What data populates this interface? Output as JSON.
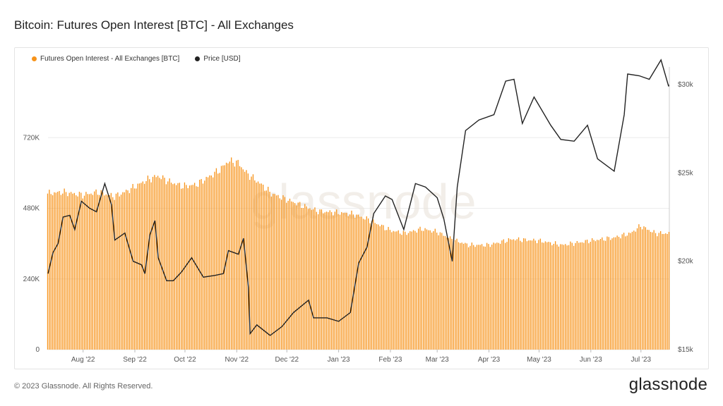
{
  "title": "Bitcoin: Futures Open Interest [BTC] - All Exchanges",
  "footer": "© 2023 Glassnode. All Rights Reserved.",
  "brand": "glassnode",
  "watermark": "glassnode",
  "legend": [
    {
      "label": "Futures Open Interest - All Exchanges [BTC]",
      "color": "#f7931a"
    },
    {
      "label": "Price [USD]",
      "color": "#222222"
    }
  ],
  "chart_data": {
    "type": "bar",
    "x_range": [
      "2022-07-11",
      "2023-07-18"
    ],
    "series": [
      {
        "name": "Futures Open Interest - All Exchanges [BTC]",
        "type": "bar",
        "axis": "left",
        "color": "#f7931a",
        "points": [
          [
            "2022-07-11",
            530000
          ],
          [
            "2022-07-20",
            535000
          ],
          [
            "2022-08-01",
            525000
          ],
          [
            "2022-08-10",
            535000
          ],
          [
            "2022-08-20",
            520000
          ],
          [
            "2022-08-28",
            540000
          ],
          [
            "2022-09-08",
            575000
          ],
          [
            "2022-09-15",
            590000
          ],
          [
            "2022-09-22",
            570000
          ],
          [
            "2022-09-30",
            555000
          ],
          [
            "2022-10-08",
            560000
          ],
          [
            "2022-10-15",
            585000
          ],
          [
            "2022-10-22",
            610000
          ],
          [
            "2022-10-27",
            640000
          ],
          [
            "2022-11-02",
            635000
          ],
          [
            "2022-11-07",
            600000
          ],
          [
            "2022-11-15",
            565000
          ],
          [
            "2022-11-22",
            530000
          ],
          [
            "2022-12-01",
            510000
          ],
          [
            "2022-12-10",
            490000
          ],
          [
            "2022-12-20",
            470000
          ],
          [
            "2023-01-01",
            465000
          ],
          [
            "2023-01-10",
            460000
          ],
          [
            "2023-01-20",
            440000
          ],
          [
            "2023-02-01",
            405000
          ],
          [
            "2023-02-10",
            395000
          ],
          [
            "2023-02-20",
            410000
          ],
          [
            "2023-03-01",
            400000
          ],
          [
            "2023-03-10",
            375000
          ],
          [
            "2023-03-20",
            355000
          ],
          [
            "2023-04-01",
            355000
          ],
          [
            "2023-04-15",
            375000
          ],
          [
            "2023-05-01",
            370000
          ],
          [
            "2023-05-15",
            355000
          ],
          [
            "2023-06-01",
            370000
          ],
          [
            "2023-06-15",
            380000
          ],
          [
            "2023-06-25",
            395000
          ],
          [
            "2023-07-01",
            420000
          ],
          [
            "2023-07-10",
            395000
          ],
          [
            "2023-07-18",
            395000
          ]
        ]
      },
      {
        "name": "Price [USD]",
        "type": "line",
        "axis": "right",
        "color": "#222222",
        "points": [
          [
            "2022-07-11",
            19300
          ],
          [
            "2022-07-14",
            20500
          ],
          [
            "2022-07-17",
            21000
          ],
          [
            "2022-07-20",
            22500
          ],
          [
            "2022-07-24",
            22600
          ],
          [
            "2022-07-27",
            21800
          ],
          [
            "2022-07-31",
            23400
          ],
          [
            "2022-08-05",
            23000
          ],
          [
            "2022-08-09",
            22800
          ],
          [
            "2022-08-14",
            24400
          ],
          [
            "2022-08-18",
            23200
          ],
          [
            "2022-08-20",
            21200
          ],
          [
            "2022-08-26",
            21600
          ],
          [
            "2022-08-31",
            20000
          ],
          [
            "2022-09-05",
            19800
          ],
          [
            "2022-09-07",
            19300
          ],
          [
            "2022-09-10",
            21500
          ],
          [
            "2022-09-13",
            22300
          ],
          [
            "2022-09-15",
            20200
          ],
          [
            "2022-09-20",
            18900
          ],
          [
            "2022-09-24",
            18900
          ],
          [
            "2022-09-29",
            19400
          ],
          [
            "2022-10-05",
            20200
          ],
          [
            "2022-10-12",
            19100
          ],
          [
            "2022-10-19",
            19200
          ],
          [
            "2022-10-24",
            19300
          ],
          [
            "2022-10-27",
            20600
          ],
          [
            "2022-11-02",
            20400
          ],
          [
            "2022-11-05",
            21300
          ],
          [
            "2022-11-08",
            18500
          ],
          [
            "2022-11-09",
            15900
          ],
          [
            "2022-11-13",
            16400
          ],
          [
            "2022-11-21",
            15800
          ],
          [
            "2022-11-28",
            16300
          ],
          [
            "2022-12-05",
            17100
          ],
          [
            "2022-12-14",
            17800
          ],
          [
            "2022-12-17",
            16800
          ],
          [
            "2022-12-25",
            16800
          ],
          [
            "2023-01-01",
            16600
          ],
          [
            "2023-01-08",
            17100
          ],
          [
            "2023-01-13",
            19900
          ],
          [
            "2023-01-18",
            20800
          ],
          [
            "2023-01-22",
            22700
          ],
          [
            "2023-01-29",
            23700
          ],
          [
            "2023-02-02",
            23500
          ],
          [
            "2023-02-09",
            21800
          ],
          [
            "2023-02-16",
            24400
          ],
          [
            "2023-02-22",
            24200
          ],
          [
            "2023-03-01",
            23600
          ],
          [
            "2023-03-05",
            22400
          ],
          [
            "2023-03-10",
            20000
          ],
          [
            "2023-03-13",
            24200
          ],
          [
            "2023-03-18",
            27400
          ],
          [
            "2023-03-26",
            28000
          ],
          [
            "2023-04-04",
            28300
          ],
          [
            "2023-04-11",
            30200
          ],
          [
            "2023-04-16",
            30300
          ],
          [
            "2023-04-21",
            27800
          ],
          [
            "2023-04-28",
            29300
          ],
          [
            "2023-05-08",
            27700
          ],
          [
            "2023-05-14",
            26900
          ],
          [
            "2023-05-22",
            26800
          ],
          [
            "2023-05-30",
            27700
          ],
          [
            "2023-06-05",
            25800
          ],
          [
            "2023-06-15",
            25100
          ],
          [
            "2023-06-21",
            28300
          ],
          [
            "2023-06-23",
            30600
          ],
          [
            "2023-06-30",
            30500
          ],
          [
            "2023-07-06",
            30300
          ],
          [
            "2023-07-13",
            31400
          ],
          [
            "2023-07-18",
            29900
          ],
          [
            "2023-07-21",
            30000
          ]
        ]
      }
    ],
    "x_ticks": [
      {
        "date": "2022-08-01",
        "label": "Aug '22"
      },
      {
        "date": "2022-09-01",
        "label": "Sep '22"
      },
      {
        "date": "2022-10-01",
        "label": "Oct '22"
      },
      {
        "date": "2022-11-01",
        "label": "Nov '22"
      },
      {
        "date": "2022-12-01",
        "label": "Dec '22"
      },
      {
        "date": "2023-01-01",
        "label": "Jan '23"
      },
      {
        "date": "2023-02-01",
        "label": "Feb '23"
      },
      {
        "date": "2023-03-01",
        "label": "Mar '23"
      },
      {
        "date": "2023-04-01",
        "label": "Apr '23"
      },
      {
        "date": "2023-05-01",
        "label": "May '23"
      },
      {
        "date": "2023-06-01",
        "label": "Jun '23"
      },
      {
        "date": "2023-07-01",
        "label": "Jul '23"
      }
    ],
    "y_left": {
      "ylim": [
        0,
        960000
      ],
      "ticks": [
        {
          "v": 0,
          "label": "0"
        },
        {
          "v": 240000,
          "label": "240K"
        },
        {
          "v": 480000,
          "label": "480K"
        },
        {
          "v": 720000,
          "label": "720K"
        }
      ]
    },
    "y_right": {
      "ylim": [
        15000,
        31000
      ],
      "ticks": [
        {
          "v": 15000,
          "label": "$15k"
        },
        {
          "v": 20000,
          "label": "$20k"
        },
        {
          "v": 25000,
          "label": "$25k"
        },
        {
          "v": 30000,
          "label": "$30k"
        }
      ]
    },
    "grid": true,
    "legend_position": "top-left"
  }
}
